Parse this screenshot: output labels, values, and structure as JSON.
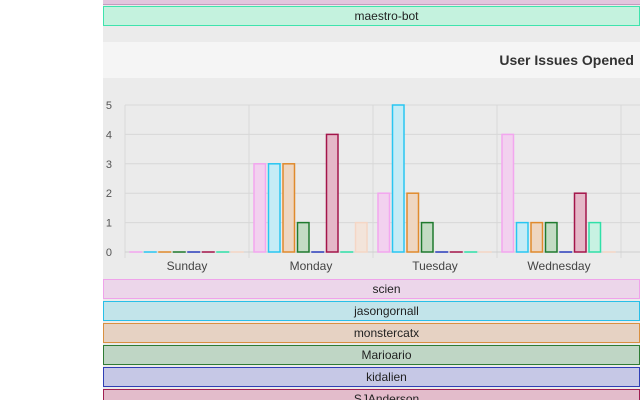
{
  "chart_data": {
    "type": "bar",
    "title": "User Issues Opened",
    "categories": [
      "Sunday",
      "Monday",
      "Tuesday",
      "Wednesday"
    ],
    "ylim": [
      0,
      5
    ],
    "yticks": [
      0,
      1,
      2,
      3,
      4,
      5
    ],
    "grid": true,
    "legend_position": "bottom",
    "series": [
      {
        "name": "scien",
        "color": "#f3a6ef",
        "fill": "#f2d1ef",
        "values": [
          0,
          3,
          2,
          4
        ]
      },
      {
        "name": "jasongornall",
        "color": "#28c6f2",
        "fill": "#c5ecf6",
        "values": [
          0,
          3,
          5,
          1
        ]
      },
      {
        "name": "monstercatx",
        "color": "#e08a2c",
        "fill": "#eed6c1",
        "values": [
          0,
          3,
          2,
          1
        ]
      },
      {
        "name": "Marioario",
        "color": "#1f7a2e",
        "fill": "#c3dcc4",
        "values": [
          0,
          1,
          1,
          1
        ]
      },
      {
        "name": "kidalien",
        "color": "#2b3dbb",
        "fill": "#c7cbec",
        "values": [
          0,
          0,
          0,
          0
        ]
      },
      {
        "name": "SJAnderson",
        "color": "#a3154a",
        "fill": "#e5b8c8",
        "values": [
          0,
          4,
          0,
          2
        ]
      },
      {
        "name": "maestro-bot",
        "color": "#2fe0a8",
        "fill": "#c7f2e2",
        "values": [
          0,
          0,
          0,
          1
        ]
      },
      {
        "name": "",
        "color": "#f5d6c5",
        "fill": "#f3e4da",
        "values": [
          0,
          1,
          0,
          0
        ]
      }
    ]
  },
  "legend_top": {
    "label": "maestro-bot",
    "color": "#3fe3ad",
    "fill": "#c4f2de"
  },
  "legend_bottom": [
    {
      "label": "scien",
      "color": "#efa3ea",
      "fill": "#ecd6ea"
    },
    {
      "label": "jasongornall",
      "color": "#28bfe8",
      "fill": "#c2e4ea"
    },
    {
      "label": "monstercatx",
      "color": "#d99040",
      "fill": "#e6d2c3"
    },
    {
      "label": "Marioario",
      "color": "#2e7b34",
      "fill": "#bfd6c5"
    },
    {
      "label": "kidalien",
      "color": "#2f3fb5",
      "fill": "#c6c8e6"
    },
    {
      "label": "SJAnderson",
      "color": "#a01f52",
      "fill": "#e3bccb"
    }
  ]
}
